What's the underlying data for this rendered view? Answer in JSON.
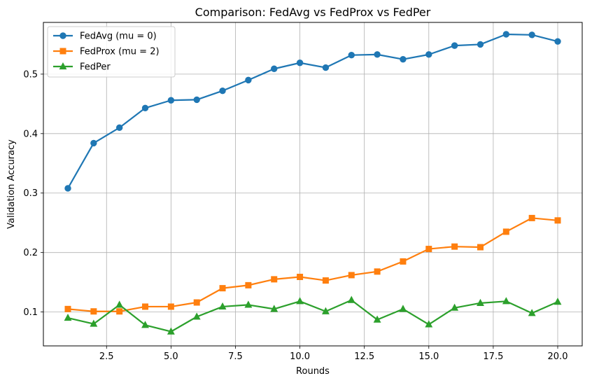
{
  "chart_data": {
    "type": "line",
    "title": "Comparison: FedAvg vs FedProx vs FedPer",
    "xlabel": "Rounds",
    "ylabel": "Validation Accuracy",
    "xlim": [
      0.05,
      20.95
    ],
    "ylim": [
      0.043,
      0.587
    ],
    "xticks": [
      2.5,
      5.0,
      7.5,
      10.0,
      12.5,
      15.0,
      17.5,
      20.0
    ],
    "xtick_labels": [
      "2.5",
      "5.0",
      "7.5",
      "10.0",
      "12.5",
      "15.0",
      "17.5",
      "20.0"
    ],
    "yticks": [
      0.1,
      0.2,
      0.3,
      0.4,
      0.5
    ],
    "ytick_labels": [
      "0.1",
      "0.2",
      "0.3",
      "0.4",
      "0.5"
    ],
    "grid": true,
    "legend_position": "top-left",
    "x": [
      1,
      2,
      3,
      4,
      5,
      6,
      7,
      8,
      9,
      10,
      11,
      12,
      13,
      14,
      15,
      16,
      17,
      18,
      19,
      20
    ],
    "series": [
      {
        "name": "FedAvg (mu = 0)",
        "color": "#1f77b4",
        "marker": "circle",
        "values": [
          0.308,
          0.384,
          0.41,
          0.443,
          0.456,
          0.457,
          0.472,
          0.49,
          0.509,
          0.519,
          0.511,
          0.532,
          0.533,
          0.525,
          0.533,
          0.548,
          0.55,
          0.567,
          0.566,
          0.555
        ]
      },
      {
        "name": "FedProx (mu = 2)",
        "color": "#ff7f0e",
        "marker": "square",
        "values": [
          0.105,
          0.101,
          0.101,
          0.109,
          0.109,
          0.116,
          0.14,
          0.145,
          0.155,
          0.159,
          0.153,
          0.162,
          0.168,
          0.185,
          0.206,
          0.21,
          0.209,
          0.235,
          0.258,
          0.254
        ]
      },
      {
        "name": "FedPer",
        "color": "#2ca02c",
        "marker": "triangle",
        "values": [
          0.09,
          0.08,
          0.112,
          0.078,
          0.067,
          0.092,
          0.109,
          0.112,
          0.105,
          0.118,
          0.101,
          0.12,
          0.087,
          0.105,
          0.079,
          0.107,
          0.115,
          0.118,
          0.098,
          0.117
        ]
      }
    ]
  }
}
